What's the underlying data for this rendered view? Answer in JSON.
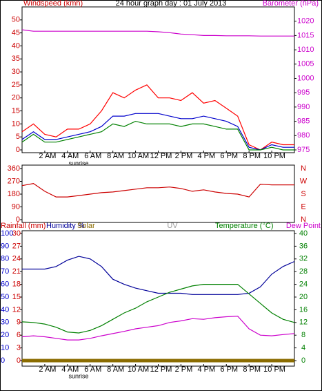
{
  "chart_data": [
    {
      "type": "line",
      "title": "24 hour graph day : 01 July 2013",
      "y_label": "Windspeed (kmh)",
      "y2_label": "Barometer (hPa)",
      "annotation": "sunrise",
      "x": [
        0,
        1,
        2,
        3,
        4,
        5,
        6,
        7,
        8,
        9,
        10,
        11,
        12,
        13,
        14,
        15,
        16,
        17,
        18,
        19,
        20,
        21,
        22,
        23,
        24
      ],
      "xlim": [
        0,
        24
      ],
      "xticks": [
        {
          "value": 2,
          "label": "2 AM"
        },
        {
          "value": 4,
          "label": "4 AM"
        },
        {
          "value": 6,
          "label": "6 AM"
        },
        {
          "value": 8,
          "label": "8 AM"
        },
        {
          "value": 10,
          "label": "10 AM"
        },
        {
          "value": 12,
          "label": "12 PM"
        },
        {
          "value": 14,
          "label": "2 PM"
        },
        {
          "value": 16,
          "label": "4 PM"
        },
        {
          "value": 18,
          "label": "6 PM"
        },
        {
          "value": 20,
          "label": "8 PM"
        },
        {
          "value": 22,
          "label": "10 PM"
        }
      ],
      "ylim": [
        0,
        55
      ],
      "yticks": [
        0,
        5,
        10,
        15,
        20,
        25,
        30,
        35,
        40,
        45,
        50
      ],
      "y_color": "#cc0000",
      "y2lim": [
        975,
        1025
      ],
      "y2ticks": [
        975,
        980,
        985,
        990,
        995,
        1000,
        1005,
        1010,
        1015,
        1020
      ],
      "y2_color": "#cc00cc",
      "series": [
        {
          "color": "#ff0000",
          "values": [
            7,
            10,
            6,
            5,
            8,
            8,
            10,
            15,
            22,
            20,
            23,
            25,
            20,
            20,
            19,
            22,
            18,
            19,
            16,
            13,
            2,
            0,
            3,
            2,
            2
          ]
        },
        {
          "color": "#0000cc",
          "values": [
            4,
            7,
            4,
            4,
            5,
            6,
            7,
            9,
            13,
            13,
            14,
            14,
            14,
            13,
            12,
            12,
            13,
            12,
            11,
            9,
            1,
            0,
            2,
            1,
            1
          ]
        },
        {
          "color": "#008000",
          "values": [
            3,
            6,
            3,
            3,
            4,
            5,
            6,
            7,
            10,
            9,
            11,
            10,
            10,
            10,
            9,
            10,
            10,
            9,
            8,
            8,
            0,
            0,
            1,
            0,
            0
          ]
        },
        {
          "color": "#cc00cc",
          "axis": "y2",
          "values": [
            1017,
            1016.5,
            1016.5,
            1016.5,
            1016.5,
            1016.5,
            1016.5,
            1016.5,
            1016.5,
            1016.5,
            1016.5,
            1016.5,
            1016.3,
            1016,
            1015.5,
            1015.3,
            1015,
            1015,
            1014.9,
            1014.9,
            1014.9,
            1014.8,
            1014.8,
            1014.8,
            1014.8
          ]
        }
      ]
    },
    {
      "type": "line",
      "x": [
        0,
        1,
        2,
        3,
        4,
        5,
        6,
        7,
        8,
        9,
        10,
        11,
        12,
        13,
        14,
        15,
        16,
        17,
        18,
        19,
        20,
        21,
        22,
        23,
        24
      ],
      "xlim": [
        0,
        24
      ],
      "ylim": [
        0,
        360
      ],
      "yticks": [
        0,
        90,
        180,
        270,
        360
      ],
      "y_color": "#cc0000",
      "right_labels": [
        "N",
        "E",
        "S",
        "W",
        "N"
      ],
      "series": [
        {
          "color": "#cc0000",
          "values": [
            240,
            255,
            200,
            160,
            160,
            170,
            180,
            190,
            195,
            205,
            215,
            225,
            225,
            230,
            220,
            200,
            210,
            195,
            185,
            180,
            160,
            250,
            245,
            245,
            245
          ]
        }
      ]
    },
    {
      "type": "line",
      "annotation": "sunrise",
      "rain_label": "Rainfall (mm)",
      "uv_label": "UV",
      "x": [
        0,
        1,
        2,
        3,
        4,
        5,
        6,
        7,
        8,
        9,
        10,
        11,
        12,
        13,
        14,
        15,
        16,
        17,
        18,
        19,
        20,
        21,
        22,
        23,
        24
      ],
      "xlim": [
        0,
        24
      ],
      "xticks": [
        {
          "value": 2,
          "label": "2 AM"
        },
        {
          "value": 4,
          "label": "4 AM"
        },
        {
          "value": 6,
          "label": "6 AM"
        },
        {
          "value": 8,
          "label": "8 AM"
        },
        {
          "value": 10,
          "label": "10 AM"
        },
        {
          "value": 12,
          "label": "12 PM"
        },
        {
          "value": 14,
          "label": "2 PM"
        },
        {
          "value": 16,
          "label": "4 PM"
        },
        {
          "value": 18,
          "label": "6 PM"
        },
        {
          "value": 20,
          "label": "8 PM"
        },
        {
          "value": 22,
          "label": "10 PM"
        }
      ],
      "ylim": [
        0,
        100
      ],
      "yticks": [
        0,
        10,
        20,
        30,
        40,
        50,
        60,
        70,
        80,
        90,
        100
      ],
      "y_color": "#0000cc",
      "y3lim": [
        0,
        30
      ],
      "y3ticks": [
        0,
        3,
        6,
        9,
        12,
        15,
        18,
        21,
        24,
        27,
        30
      ],
      "y3_color": "#cc0000",
      "y2lim": [
        0,
        40
      ],
      "y2ticks": [
        0,
        4,
        8,
        12,
        16,
        20,
        24,
        28,
        32,
        36,
        40
      ],
      "y2_color": "#008000",
      "series": [
        {
          "name": "Humidity %",
          "color": "#000099",
          "values": [
            72,
            72,
            72,
            74,
            79,
            82,
            80,
            74,
            64,
            60,
            57,
            55,
            53,
            53,
            53,
            52,
            52,
            52,
            52,
            52,
            53,
            58,
            68,
            74,
            78
          ]
        },
        {
          "name": "Solar",
          "color": "#8b6c00",
          "line_width": 5,
          "values": [
            0,
            0,
            0,
            0,
            0,
            0,
            0,
            0,
            0,
            0,
            0,
            0,
            0,
            0,
            0,
            0,
            0,
            0,
            0,
            0,
            0,
            0,
            0,
            0,
            0
          ]
        },
        {
          "name": "Temperature (°C)",
          "color": "#008000",
          "axis": "y2",
          "values": [
            12.2,
            12,
            11.5,
            10.5,
            9,
            8.7,
            9.5,
            11,
            13,
            15,
            16.5,
            18.5,
            20,
            21.5,
            22.5,
            23.5,
            24,
            24,
            24,
            24,
            21,
            18,
            15,
            13,
            12
          ]
        },
        {
          "name": "Dew Point",
          "color": "#cc00cc",
          "axis": "y2",
          "values": [
            7.5,
            7.8,
            7.5,
            7,
            6.5,
            6.5,
            7,
            7.8,
            8.5,
            9.2,
            10,
            10.5,
            11,
            12,
            12.5,
            13.2,
            13,
            13.5,
            13.8,
            14,
            10,
            8,
            7.8,
            8.2,
            8.5
          ]
        }
      ]
    }
  ]
}
